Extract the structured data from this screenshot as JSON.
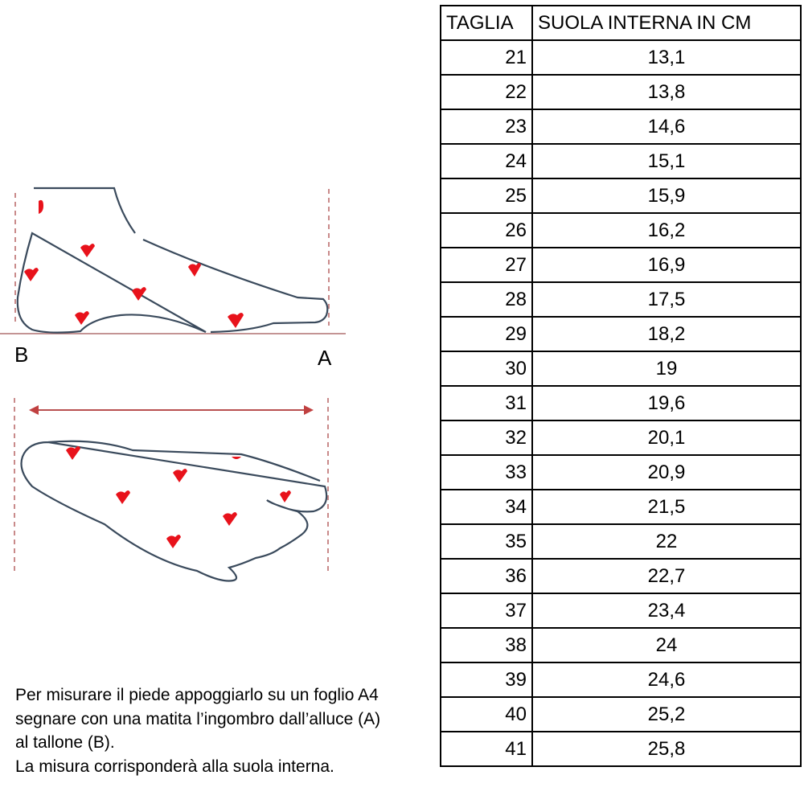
{
  "diagram": {
    "label_heel": "B",
    "label_toe": "A",
    "accent_color": "#e8121b",
    "outline_color": "#3a4a5c"
  },
  "instructions": [
    "Per misurare il piede appoggiarlo su un foglio A4",
    "segnare con una matita l’ingombro dall’alluce (A)",
    "al tallone (B).",
    "La misura corrisponderà alla suola interna."
  ],
  "table": {
    "headers": [
      "TAGLIA",
      "SUOLA INTERNA IN CM"
    ],
    "rows": [
      [
        "21",
        "13,1"
      ],
      [
        "22",
        "13,8"
      ],
      [
        "23",
        "14,6"
      ],
      [
        "24",
        "15,1"
      ],
      [
        "25",
        "15,9"
      ],
      [
        "26",
        "16,2"
      ],
      [
        "27",
        "16,9"
      ],
      [
        "28",
        "17,5"
      ],
      [
        "29",
        "18,2"
      ],
      [
        "30",
        "19"
      ],
      [
        "31",
        "19,6"
      ],
      [
        "32",
        "20,1"
      ],
      [
        "33",
        "20,9"
      ],
      [
        "34",
        "21,5"
      ],
      [
        "35",
        "22"
      ],
      [
        "36",
        "22,7"
      ],
      [
        "37",
        "23,4"
      ],
      [
        "38",
        "24"
      ],
      [
        "39",
        "24,6"
      ],
      [
        "40",
        "25,2"
      ],
      [
        "41",
        "25,8"
      ]
    ]
  }
}
